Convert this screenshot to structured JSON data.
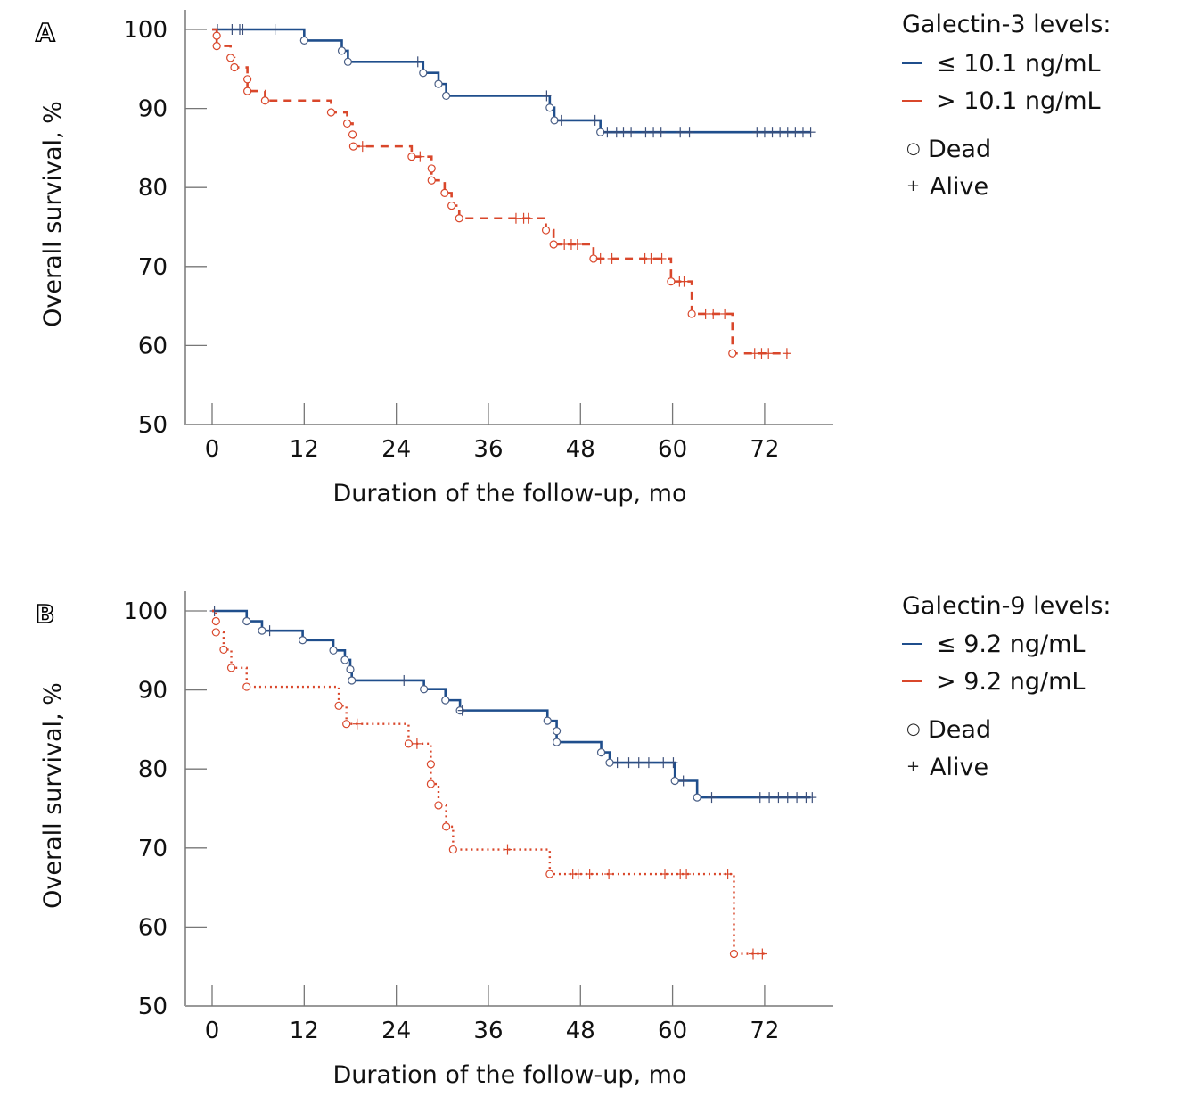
{
  "colors": {
    "low": "#1f4e8c",
    "high": "#d9472b",
    "axis": "#999999",
    "text": "#111111"
  },
  "chart_data": [
    {
      "panel": "A",
      "type": "line",
      "subtype": "kaplan-meier",
      "title": "",
      "xlabel": "Duration of the follow-up, mo",
      "ylabel": "Overall survival, %",
      "xlim": [
        -4,
        81
      ],
      "ylim": [
        50,
        100
      ],
      "xticks": [
        0,
        12,
        24,
        36,
        48,
        60,
        72
      ],
      "yticks": [
        50,
        60,
        70,
        80,
        90,
        100
      ],
      "xtick_labels": [
        "0",
        "12",
        "24",
        "36",
        "48",
        "60",
        "72"
      ],
      "ytick_labels": [
        "50",
        "60",
        "70",
        "80",
        "90",
        "100"
      ],
      "grid": false,
      "legend": {
        "title": "Galectin-3 levels:",
        "placement": "top-right",
        "entries": [
          "≤ 10.1 ng/mL",
          "> 10.1 ng/mL"
        ],
        "markers": [
          {
            "symbol": "○",
            "label": "Dead"
          },
          {
            "symbol": "+",
            "label": "Alive"
          }
        ]
      },
      "series": [
        {
          "name": "≤ 10.1 ng/mL",
          "color_key": "low",
          "style": "solid",
          "steps": [
            [
              0,
              100
            ],
            [
              12,
              98.6
            ],
            [
              16.9,
              97.3
            ],
            [
              17.7,
              95.9
            ],
            [
              27.5,
              94.5
            ],
            [
              29.5,
              93.1
            ],
            [
              30.5,
              91.6
            ],
            [
              44,
              90.1
            ],
            [
              44.6,
              88.5
            ],
            [
              50.6,
              87.0
            ]
          ],
          "end": 78,
          "censored": [
            0.7,
            2.6,
            3.6,
            4.0,
            8.2,
            26.8,
            43.6,
            45.5,
            49.9,
            51.5,
            52.7,
            53.6,
            54.6,
            56.5,
            57.5,
            58.5,
            61.0,
            62.2,
            71.0,
            72.0,
            73.0,
            74.0,
            75.0,
            76.0,
            77.0,
            78.0
          ]
        },
        {
          "name": "> 10.1 ng/mL",
          "color_key": "high",
          "style": "dashed",
          "steps": [
            [
              0,
              100
            ],
            [
              0.6,
              99.2
            ],
            [
              0.6,
              97.9
            ],
            [
              2.4,
              96.4
            ],
            [
              2.9,
              95.2
            ],
            [
              4.6,
              93.7
            ],
            [
              4.6,
              92.2
            ],
            [
              6.9,
              91.0
            ],
            [
              15.5,
              89.5
            ],
            [
              17.6,
              88.1
            ],
            [
              18.3,
              86.7
            ],
            [
              18.4,
              85.2
            ],
            [
              26.0,
              83.9
            ],
            [
              28.6,
              82.4
            ],
            [
              28.6,
              80.9
            ],
            [
              30.3,
              79.3
            ],
            [
              31.2,
              77.7
            ],
            [
              32.2,
              76.1
            ],
            [
              43.5,
              74.6
            ],
            [
              44.5,
              72.8
            ],
            [
              49.7,
              71.0
            ],
            [
              59.8,
              68.1
            ],
            [
              62.5,
              64.0
            ],
            [
              67.8,
              59.0
            ]
          ],
          "end": 75,
          "censored": [
            19.6,
            27.1,
            39.6,
            40.6,
            41.2,
            45.9,
            46.8,
            47.6,
            50.6,
            52.1,
            56.4,
            57.2,
            58.6,
            60.9,
            61.5,
            64.3,
            65.3,
            66.8,
            70.7,
            71.6,
            72.5,
            74.9
          ]
        }
      ]
    },
    {
      "panel": "B",
      "type": "line",
      "subtype": "kaplan-meier",
      "title": "",
      "xlabel": "Duration of the follow-up, mo",
      "ylabel": "Overall survival, %",
      "xlim": [
        -4,
        81
      ],
      "ylim": [
        50,
        100
      ],
      "xticks": [
        0,
        12,
        24,
        36,
        48,
        60,
        72
      ],
      "yticks": [
        50,
        60,
        70,
        80,
        90,
        100
      ],
      "xtick_labels": [
        "0",
        "12",
        "24",
        "36",
        "48",
        "60",
        "72"
      ],
      "ytick_labels": [
        "50",
        "60",
        "70",
        "80",
        "90",
        "100"
      ],
      "grid": false,
      "legend": {
        "title": "Galectin-9 levels:",
        "placement": "top-right",
        "entries": [
          "≤ 9.2 ng/mL",
          "> 9.2 ng/mL"
        ],
        "markers": [
          {
            "symbol": "○",
            "label": "Dead"
          },
          {
            "symbol": "+",
            "label": "Alive"
          }
        ]
      },
      "series": [
        {
          "name": "≤ 9.2 ng/mL",
          "color_key": "low",
          "style": "solid",
          "steps": [
            [
              0,
              100
            ],
            [
              4.5,
              98.7
            ],
            [
              6.5,
              97.5
            ],
            [
              11.8,
              96.3
            ],
            [
              15.8,
              95.0
            ],
            [
              17.3,
              93.8
            ],
            [
              18.0,
              92.6
            ],
            [
              18.2,
              91.2
            ],
            [
              27.6,
              90.1
            ],
            [
              30.4,
              88.7
            ],
            [
              32.3,
              87.4
            ],
            [
              43.7,
              86.1
            ],
            [
              44.9,
              84.8
            ],
            [
              44.9,
              83.4
            ],
            [
              50.7,
              82.1
            ],
            [
              51.8,
              80.8
            ],
            [
              60.3,
              78.5
            ],
            [
              63.2,
              76.4
            ]
          ],
          "end": 78,
          "censored": [
            0.3,
            7.5,
            25.0,
            32.6,
            52.8,
            54.3,
            55.6,
            56.9,
            58.8,
            60.1,
            61.4,
            65.1,
            71.4,
            72.6,
            73.8,
            75.0,
            76.2,
            77.4,
            78.2
          ]
        },
        {
          "name": "> 9.2 ng/mL",
          "color_key": "high",
          "style": "dotted",
          "steps": [
            [
              0,
              100
            ],
            [
              0.5,
              98.7
            ],
            [
              0.5,
              97.3
            ],
            [
              1.5,
              95.1
            ],
            [
              2.5,
              92.8
            ],
            [
              4.5,
              90.4
            ],
            [
              16.5,
              88.0
            ],
            [
              17.5,
              85.7
            ],
            [
              25.6,
              83.2
            ],
            [
              28.5,
              80.6
            ],
            [
              28.5,
              78.1
            ],
            [
              29.5,
              75.4
            ],
            [
              30.5,
              72.7
            ],
            [
              31.4,
              69.8
            ],
            [
              44.0,
              66.7
            ],
            [
              68.0,
              56.6
            ]
          ],
          "end": 72,
          "censored": [
            18.9,
            26.7,
            38.5,
            47.0,
            47.7,
            49.2,
            51.7,
            59.0,
            61.0,
            61.8,
            67.2,
            70.5,
            71.7
          ]
        }
      ]
    }
  ]
}
